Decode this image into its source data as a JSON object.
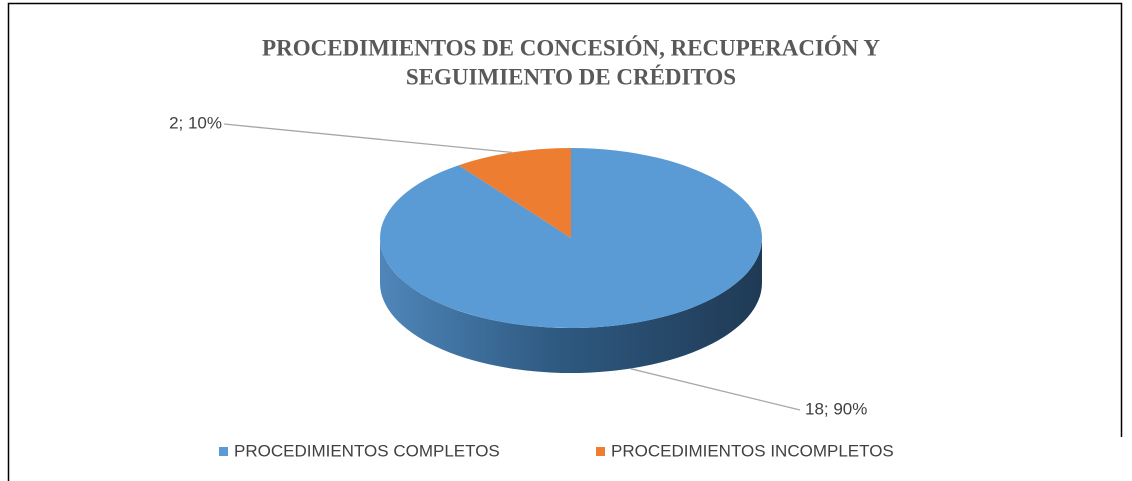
{
  "chart_data": {
    "type": "pie",
    "title": [
      "PROCEDIMIENTOS DE CONCESIÓN, RECUPERACIÓN Y",
      "SEGUIMIENTO DE CRÉDITOS"
    ],
    "categories": [
      "PROCEDIMIENTOS COMPLETOS",
      "PROCEDIMIENTOS INCOMPLETOS"
    ],
    "values": [
      18,
      2
    ],
    "value_labels": [
      "18; 90%",
      "2; 10%"
    ],
    "colors": [
      "#5b9bd5",
      "#ed7d31"
    ],
    "legend": "bottom"
  }
}
